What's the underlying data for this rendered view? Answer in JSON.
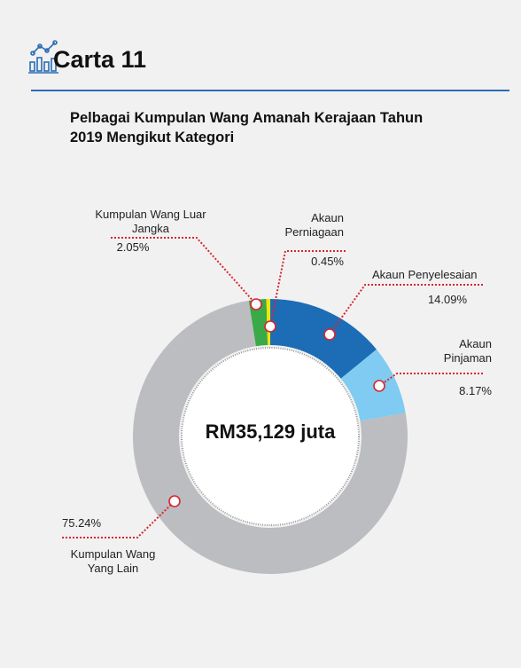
{
  "chart_data": {
    "type": "donut",
    "chart_number": "Carta 11",
    "title": "Pelbagai Kumpulan Wang Amanah Kerajaan Tahun 2019 Mengikut Kategori",
    "center_label": "RM35,129 juta",
    "categories": [
      "Akaun Penyelesaian",
      "Akaun Pinjaman",
      "Kumpulan Wang Yang Lain",
      "Kumpulan Wang Luar Jangka",
      "Akaun Perniagaan"
    ],
    "values": [
      14.09,
      8.17,
      75.24,
      2.05,
      0.45
    ],
    "value_labels": [
      "14.09%",
      "8.17%",
      "75.24%",
      "2.05%",
      "0.45%"
    ],
    "colors": [
      "#1c6db5",
      "#7fcbf1",
      "#bcbdc0",
      "#3aa948",
      "#f3e600"
    ]
  }
}
